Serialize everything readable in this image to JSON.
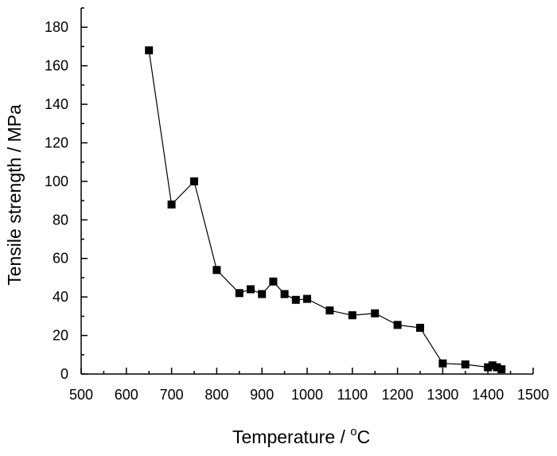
{
  "chart_data": {
    "type": "scatter",
    "title": "",
    "xlabel": "Temperature / ",
    "xlabel_unit": "C",
    "xlabel_degree": "o",
    "ylabel": "Tensile strength / MPa",
    "xlim": [
      500,
      1500
    ],
    "ylim": [
      0,
      190
    ],
    "x_major_ticks": [
      500,
      600,
      700,
      800,
      900,
      1000,
      1100,
      1200,
      1300,
      1400,
      1500
    ],
    "y_major_ticks": [
      0,
      20,
      40,
      60,
      80,
      100,
      120,
      140,
      160,
      180
    ],
    "grid": false,
    "legend": "none",
    "series": [
      {
        "marker": "square",
        "connected": true,
        "x": [
          650,
          700,
          750,
          800,
          850,
          875,
          900,
          925,
          950,
          975,
          1000,
          1050,
          1100,
          1150,
          1200,
          1250,
          1300,
          1350,
          1400,
          1410,
          1420,
          1430
        ],
        "y": [
          168,
          88,
          100,
          54,
          42,
          44,
          41.5,
          48,
          41.5,
          38.5,
          39,
          33,
          30.5,
          31.5,
          25.5,
          24,
          5.5,
          5,
          3.5,
          4.5,
          3.5,
          2.5
        ]
      }
    ]
  }
}
